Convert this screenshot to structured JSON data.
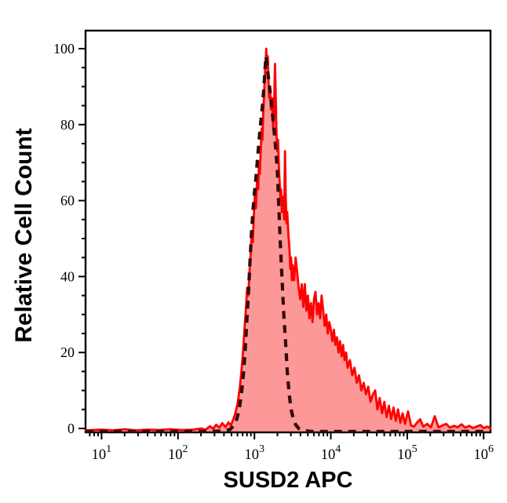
{
  "figure": {
    "background": "#ffffff"
  },
  "chart_data": {
    "type": "area",
    "title": "",
    "xlabel": "SUSD2 APC",
    "ylabel": "Relative Cell Count",
    "x_scale": "log10",
    "xlim_log10": [
      0.79,
      6.09
    ],
    "ylim": [
      -1.03,
      104.75
    ],
    "grid": false,
    "legend": "none",
    "x_tick_base": "10",
    "x_tick_exponents": [
      1,
      2,
      3,
      4,
      5,
      6
    ],
    "y_ticks": [
      0,
      20,
      40,
      60,
      80,
      100
    ],
    "y_minor_step": 5,
    "colors": {
      "sample_line": "#fe0000",
      "sample_fill": "#fd9898",
      "control_dash": "#350a0a",
      "axis": "#000000",
      "text": "#000000"
    },
    "series": [
      {
        "name": "red_filled_histogram",
        "style": "filled-line",
        "points": [
          [
            0.79,
            -0.5
          ],
          [
            1.0,
            -0.3
          ],
          [
            1.15,
            -0.5
          ],
          [
            1.3,
            -0.2
          ],
          [
            1.45,
            -0.5
          ],
          [
            1.6,
            -0.3
          ],
          [
            1.75,
            -0.4
          ],
          [
            1.9,
            -0.2
          ],
          [
            2.05,
            -0.4
          ],
          [
            2.2,
            -0.3
          ],
          [
            2.3,
            0.0
          ],
          [
            2.36,
            -0.3
          ],
          [
            2.42,
            0.6
          ],
          [
            2.46,
            -0.1
          ],
          [
            2.5,
            1.0
          ],
          [
            2.54,
            0.2
          ],
          [
            2.58,
            1.4
          ],
          [
            2.62,
            0.4
          ],
          [
            2.66,
            1.6
          ],
          [
            2.69,
            0.8
          ],
          [
            2.72,
            2.2
          ],
          [
            2.75,
            4.0
          ],
          [
            2.78,
            6.5
          ],
          [
            2.81,
            11
          ],
          [
            2.83,
            15
          ],
          [
            2.85,
            20
          ],
          [
            2.87,
            26
          ],
          [
            2.89,
            32
          ],
          [
            2.905,
            37
          ],
          [
            2.92,
            35
          ],
          [
            2.935,
            41
          ],
          [
            2.95,
            46
          ],
          [
            2.965,
            52
          ],
          [
            2.98,
            49
          ],
          [
            2.99,
            55
          ],
          [
            3.005,
            61
          ],
          [
            3.02,
            58
          ],
          [
            3.035,
            66
          ],
          [
            3.05,
            63
          ],
          [
            3.06,
            70
          ],
          [
            3.07,
            67
          ],
          [
            3.085,
            74
          ],
          [
            3.095,
            79
          ],
          [
            3.105,
            76
          ],
          [
            3.115,
            83
          ],
          [
            3.125,
            87
          ],
          [
            3.135,
            92
          ],
          [
            3.145,
            96
          ],
          [
            3.155,
            100
          ],
          [
            3.165,
            95
          ],
          [
            3.175,
            98
          ],
          [
            3.185,
            91
          ],
          [
            3.195,
            87
          ],
          [
            3.205,
            90
          ],
          [
            3.215,
            84
          ],
          [
            3.23,
            87
          ],
          [
            3.245,
            79
          ],
          [
            3.255,
            82
          ],
          [
            3.27,
            96
          ],
          [
            3.28,
            87
          ],
          [
            3.29,
            77
          ],
          [
            3.3,
            73
          ],
          [
            3.31,
            76
          ],
          [
            3.32,
            69
          ],
          [
            3.33,
            65
          ],
          [
            3.34,
            60
          ],
          [
            3.35,
            63
          ],
          [
            3.36,
            57
          ],
          [
            3.375,
            61
          ],
          [
            3.39,
            55
          ],
          [
            3.4,
            73
          ],
          [
            3.41,
            61
          ],
          [
            3.42,
            54
          ],
          [
            3.43,
            57
          ],
          [
            3.445,
            51
          ],
          [
            3.46,
            47
          ],
          [
            3.47,
            42
          ],
          [
            3.48,
            45
          ],
          [
            3.49,
            39
          ],
          [
            3.5,
            43
          ],
          [
            3.52,
            39
          ],
          [
            3.54,
            45
          ],
          [
            3.56,
            41
          ],
          [
            3.58,
            37
          ],
          [
            3.6,
            34
          ],
          [
            3.62,
            38
          ],
          [
            3.64,
            32
          ],
          [
            3.66,
            38
          ],
          [
            3.68,
            31
          ],
          [
            3.7,
            35
          ],
          [
            3.72,
            29
          ],
          [
            3.74,
            33
          ],
          [
            3.76,
            28
          ],
          [
            3.78,
            34
          ],
          [
            3.8,
            36
          ],
          [
            3.82,
            30
          ],
          [
            3.84,
            33
          ],
          [
            3.86,
            29
          ],
          [
            3.88,
            35
          ],
          [
            3.9,
            31
          ],
          [
            3.92,
            27
          ],
          [
            3.94,
            30
          ],
          [
            3.96,
            25
          ],
          [
            3.98,
            28
          ],
          [
            4.0,
            26
          ],
          [
            4.02,
            23
          ],
          [
            4.04,
            26
          ],
          [
            4.06,
            22
          ],
          [
            4.08,
            24
          ],
          [
            4.1,
            20
          ],
          [
            4.12,
            23
          ],
          [
            4.14,
            19
          ],
          [
            4.16,
            22
          ],
          [
            4.18,
            18
          ],
          [
            4.2,
            20
          ],
          [
            4.22,
            16
          ],
          [
            4.25,
            18
          ],
          [
            4.28,
            14
          ],
          [
            4.31,
            16
          ],
          [
            4.34,
            12
          ],
          [
            4.37,
            14
          ],
          [
            4.4,
            10
          ],
          [
            4.43,
            12
          ],
          [
            4.46,
            9
          ],
          [
            4.49,
            11
          ],
          [
            4.52,
            7
          ],
          [
            4.55,
            9
          ],
          [
            4.58,
            10
          ],
          [
            4.61,
            5
          ],
          [
            4.64,
            8
          ],
          [
            4.67,
            4
          ],
          [
            4.7,
            7
          ],
          [
            4.73,
            3
          ],
          [
            4.76,
            6
          ],
          [
            4.79,
            2.5
          ],
          [
            4.82,
            5.5
          ],
          [
            4.85,
            2
          ],
          [
            4.88,
            5
          ],
          [
            4.91,
            1.5
          ],
          [
            4.94,
            4
          ],
          [
            4.97,
            1.2
          ],
          [
            5.01,
            4.5
          ],
          [
            5.05,
            0.8
          ],
          [
            5.09,
            0.5
          ],
          [
            5.13,
            1.6
          ],
          [
            5.17,
            2.4
          ],
          [
            5.21,
            0.5
          ],
          [
            5.26,
            1.2
          ],
          [
            5.31,
            0.3
          ],
          [
            5.36,
            3.2
          ],
          [
            5.41,
            0.3
          ],
          [
            5.46,
            0.8
          ],
          [
            5.51,
            1.2
          ],
          [
            5.56,
            0.2
          ],
          [
            5.61,
            0.7
          ],
          [
            5.66,
            0.3
          ],
          [
            5.71,
            1.1
          ],
          [
            5.76,
            0.2
          ],
          [
            5.81,
            0.7
          ],
          [
            5.86,
            0.1
          ],
          [
            5.91,
            0.5
          ],
          [
            5.96,
            0.9
          ],
          [
            6.0,
            0.1
          ],
          [
            6.05,
            0.5
          ],
          [
            6.09,
            0.0
          ]
        ]
      },
      {
        "name": "black_dashed_histogram",
        "style": "dashed-line",
        "points": [
          [
            0.79,
            -0.8
          ],
          [
            1.3,
            -0.8
          ],
          [
            1.8,
            -0.8
          ],
          [
            2.3,
            -0.8
          ],
          [
            2.55,
            -0.7
          ],
          [
            2.68,
            -0.3
          ],
          [
            2.73,
            0.8
          ],
          [
            2.77,
            2.5
          ],
          [
            2.8,
            5
          ],
          [
            2.83,
            9
          ],
          [
            2.86,
            15
          ],
          [
            2.88,
            21
          ],
          [
            2.9,
            28
          ],
          [
            2.92,
            35
          ],
          [
            2.94,
            43
          ],
          [
            2.96,
            51
          ],
          [
            2.98,
            57
          ],
          [
            3.0,
            62
          ],
          [
            3.02,
            66
          ],
          [
            3.045,
            72
          ],
          [
            3.07,
            78
          ],
          [
            3.09,
            82
          ],
          [
            3.11,
            86
          ],
          [
            3.125,
            90
          ],
          [
            3.14,
            95
          ],
          [
            3.15,
            98
          ],
          [
            3.165,
            96
          ],
          [
            3.18,
            93
          ],
          [
            3.21,
            88
          ],
          [
            3.24,
            82
          ],
          [
            3.27,
            76
          ],
          [
            3.3,
            68
          ],
          [
            3.32,
            58
          ],
          [
            3.34,
            48
          ],
          [
            3.36,
            40
          ],
          [
            3.385,
            30
          ],
          [
            3.41,
            22
          ],
          [
            3.43,
            15
          ],
          [
            3.455,
            9
          ],
          [
            3.48,
            5
          ],
          [
            3.51,
            2.5
          ],
          [
            3.54,
            1
          ],
          [
            3.58,
            0
          ],
          [
            3.65,
            -0.5
          ],
          [
            3.75,
            -0.8
          ],
          [
            3.9,
            -0.8
          ],
          [
            4.1,
            -0.8
          ],
          [
            4.3,
            -0.8
          ],
          [
            4.5,
            -0.8
          ],
          [
            4.7,
            -0.8
          ],
          [
            4.9,
            -0.8
          ],
          [
            5.1,
            -0.8
          ],
          [
            5.3,
            -0.8
          ],
          [
            5.5,
            -0.8
          ],
          [
            5.7,
            -0.8
          ],
          [
            5.9,
            -0.8
          ],
          [
            6.09,
            -0.8
          ]
        ]
      }
    ]
  }
}
